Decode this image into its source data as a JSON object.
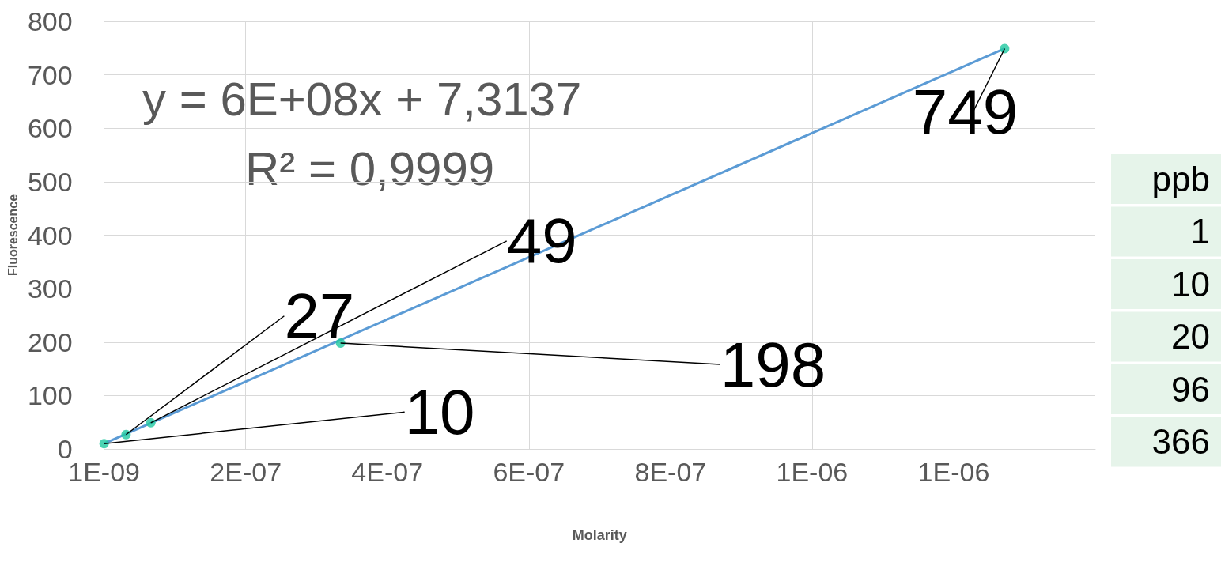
{
  "chart_data": {
    "type": "scatter",
    "xlabel": "Molarity",
    "ylabel": "Fluorescence",
    "series": [
      {
        "color": "#1fc8a0",
        "x": [
          1e-09,
          3.2e-08,
          6.7e-08,
          3.35e-07,
          1.273e-06
        ],
        "values": [
          10,
          27,
          49,
          198,
          749
        ],
        "marker": "circle"
      },
      {
        "type": "line",
        "color": "#5b9bd5",
        "x": [
          1e-09,
          1.273e-06
        ],
        "values": [
          10,
          749
        ],
        "marker": "none",
        "line_style": "solid"
      }
    ],
    "xlim": [
      1e-09,
      1.401e-06
    ],
    "xticks": [
      {
        "value": 1e-09,
        "label": "1E-09"
      },
      {
        "value": 2.01e-07,
        "label": "2E-07"
      },
      {
        "value": 4.01e-07,
        "label": "4E-07"
      },
      {
        "value": 6.01e-07,
        "label": "6E-07"
      },
      {
        "value": 8.01e-07,
        "label": "8E-07"
      },
      {
        "value": 1.001e-06,
        "label": "1E-06"
      },
      {
        "value": 1.201e-06,
        "label": "1E-06"
      }
    ],
    "ylim": [
      0,
      800
    ],
    "yticks": [
      0,
      100,
      200,
      300,
      400,
      500,
      600,
      700,
      800
    ],
    "grid": true,
    "annotations": [
      {
        "text": "10",
        "x": 1e-09,
        "y": 10
      },
      {
        "text": "27",
        "x": 3.2e-08,
        "y": 27
      },
      {
        "text": "49",
        "x": 6.7e-08,
        "y": 49
      },
      {
        "text": "198",
        "x": 3.35e-07,
        "y": 198
      },
      {
        "text": "749",
        "x": 1.273e-06,
        "y": 749
      },
      "y = 6E+08x + 7,3137",
      "R² = 0,9999",
      "ppb",
      "1",
      "10",
      "20",
      "96",
      "366"
    ]
  }
}
